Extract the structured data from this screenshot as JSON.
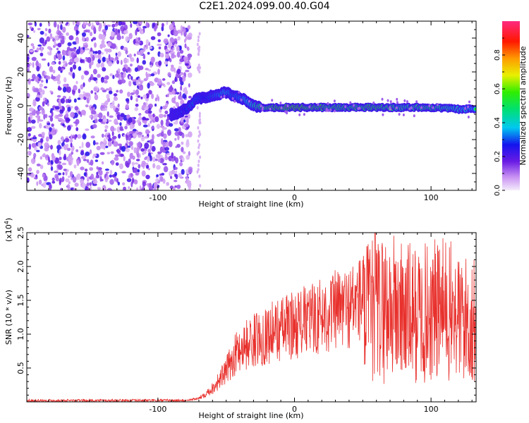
{
  "title": "C2E1.2024.099.00.40.G04",
  "chart_data": [
    {
      "type": "heatmap",
      "title": "C2E1.2024.099.00.40.G04",
      "xlabel": "Height of straight line (km)",
      "ylabel": "Frequency (Hz)",
      "xlim": [
        -196,
        133
      ],
      "ylim": [
        -50,
        50
      ],
      "x_ticks": [
        -100,
        0,
        100
      ],
      "y_ticks": [
        -40,
        -20,
        0,
        20,
        40
      ],
      "colorbar": {
        "label": "Normalized spectral amplitude",
        "range": [
          0.0,
          1.0
        ],
        "ticks": [
          0.0,
          0.2,
          0.4,
          0.6,
          0.8
        ],
        "colormap": [
          "#f2e6fa",
          "#d7b5f5",
          "#7b1de6",
          "#1f1cf0",
          "#00d2f0",
          "#00ee00",
          "#fff200",
          "#ff7a00",
          "#ff0000",
          "#ff2d7a"
        ]
      },
      "noise_region_x": [
        -196,
        -76
      ],
      "ridge": {
        "x": [
          -90,
          -82,
          -76,
          -72,
          -66,
          -60,
          -55,
          -50,
          -45,
          -40,
          -35,
          -30,
          -25,
          -20,
          -10,
          0,
          10,
          20,
          40,
          60,
          80,
          100,
          120,
          133
        ],
        "frequency": [
          -6,
          -3,
          0,
          4,
          5,
          6,
          7,
          8,
          6,
          5,
          3,
          0,
          -1,
          -1,
          -1,
          -1,
          -1,
          -1,
          -1,
          -1,
          -1,
          -1,
          -2,
          -2
        ],
        "amplitude": [
          0.35,
          0.4,
          0.5,
          0.5,
          0.45,
          0.5,
          0.55,
          0.6,
          0.5,
          0.55,
          0.6,
          0.7,
          0.8,
          0.85,
          0.9,
          0.95,
          0.9,
          0.85,
          0.8,
          0.85,
          0.75,
          0.8,
          0.65,
          0.6
        ]
      },
      "grid": false
    },
    {
      "type": "line",
      "xlabel": "Height of straight line (km)",
      "ylabel": "SNR (10 * v/v)",
      "y_scale_note": "(x10",
      "y_scale_exponent": "4",
      "xlim": [
        -196,
        133
      ],
      "ylim": [
        0,
        25000
      ],
      "x_ticks": [
        -100,
        0,
        100
      ],
      "y_ticks": [
        5000,
        10000,
        15000,
        20000,
        25000
      ],
      "y_tick_labels": [
        "0.5",
        "1.0",
        "1.5",
        "2.0",
        "2.5"
      ],
      "line_color": "#e8302c",
      "envelope": {
        "x": [
          -196,
          -80,
          -70,
          -60,
          -50,
          -45,
          -40,
          -30,
          -20,
          -10,
          0,
          10,
          20,
          30,
          40,
          50,
          60,
          70,
          80,
          90,
          100,
          110,
          120,
          133
        ],
        "y": [
          200,
          200,
          500,
          2000,
          4500,
          6500,
          8000,
          9000,
          10000,
          10800,
          11500,
          12000,
          12800,
          13500,
          14000,
          15500,
          16500,
          17000,
          16000,
          15500,
          16000,
          16500,
          15000,
          14000
        ]
      },
      "peak": {
        "x": 59,
        "y": 25000
      },
      "grid": false
    }
  ]
}
